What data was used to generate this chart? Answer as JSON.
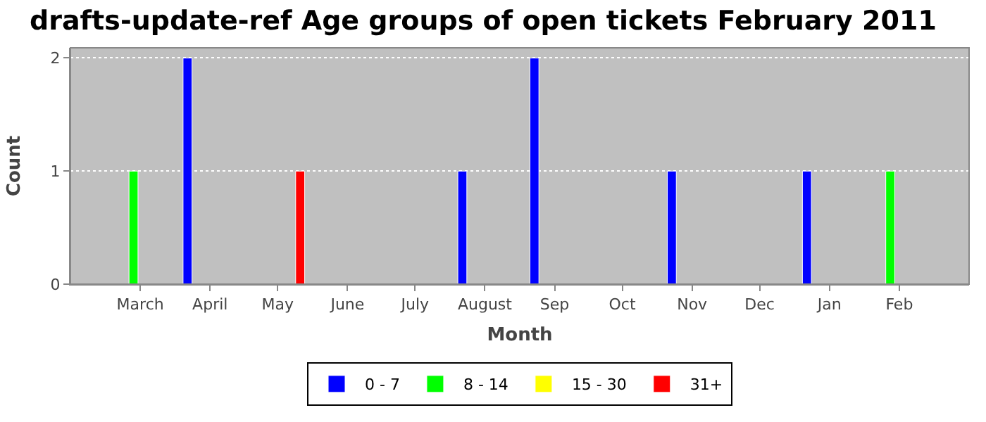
{
  "chart_data": {
    "type": "bar",
    "title": "drafts-update-ref Age groups of open tickets February 2011",
    "xlabel": "Month",
    "ylabel": "Count",
    "series": [
      {
        "name": "0 - 7",
        "color": "#0000ff",
        "x": [
          "2010-03-22",
          "2010-07-22",
          "2010-08-23",
          "2010-10-23",
          "2010-12-22"
        ],
        "values": [
          2,
          1,
          2,
          1,
          1
        ]
      },
      {
        "name": "8 - 14",
        "color": "#00ff00",
        "x": [
          "2010-02-26",
          "2011-01-28"
        ],
        "values": [
          1,
          1
        ]
      },
      {
        "name": "15 - 30",
        "color": "#ffff00"
      },
      {
        "name": "31+",
        "color": "#ff0000",
        "x": [
          "2010-05-11"
        ],
        "values": [
          1
        ]
      }
    ],
    "xlim": [
      "2010-01-29",
      "2011-03-04"
    ],
    "xticks": [
      {
        "value": "2010-03-01",
        "label": "March"
      },
      {
        "value": "2010-04-01",
        "label": "April"
      },
      {
        "value": "2010-05-01",
        "label": "May"
      },
      {
        "value": "2010-06-01",
        "label": "June"
      },
      {
        "value": "2010-07-01",
        "label": "July"
      },
      {
        "value": "2010-08-01",
        "label": "August"
      },
      {
        "value": "2010-09-01",
        "label": "Sep"
      },
      {
        "value": "2010-10-01",
        "label": "Oct"
      },
      {
        "value": "2010-11-01",
        "label": "Nov"
      },
      {
        "value": "2010-12-01",
        "label": "Dec"
      },
      {
        "value": "2011-01-01",
        "label": "Jan"
      },
      {
        "value": "2011-02-01",
        "label": "Feb"
      }
    ],
    "ylim": [
      0,
      2.09
    ],
    "yticks": [
      0,
      1,
      2
    ],
    "grid": "y",
    "legend": "bottom"
  }
}
